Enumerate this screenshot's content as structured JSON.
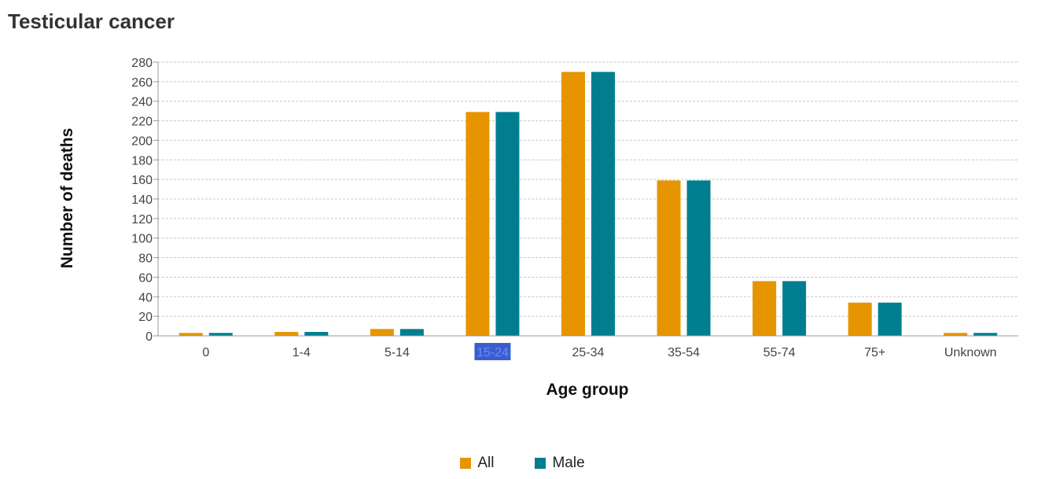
{
  "page_title": "Testicular cancer",
  "colors": {
    "All": "#e69500",
    "Male": "#007e8f",
    "grid": "#c8c8c8",
    "axis": "#999999",
    "highlight": "#3a5fcd"
  },
  "chart_data": {
    "type": "bar",
    "title": "Testicular cancer",
    "xlabel": "Age group",
    "ylabel": "Number of deaths",
    "categories": [
      "0",
      "1-4",
      "5-14",
      "15-24",
      "25-34",
      "35-54",
      "55-74",
      "75+",
      "Unknown"
    ],
    "highlighted_category": "15-24",
    "series": [
      {
        "name": "All",
        "values": [
          3,
          4,
          7,
          229,
          270,
          159,
          56,
          34,
          3
        ]
      },
      {
        "name": "Male",
        "values": [
          3,
          4,
          7,
          229,
          270,
          159,
          56,
          34,
          3
        ]
      }
    ],
    "ylim": [
      0,
      280
    ],
    "yticks": [
      0,
      20,
      40,
      60,
      80,
      100,
      120,
      140,
      160,
      180,
      200,
      220,
      240,
      260,
      280
    ],
    "grid": true,
    "legend_position": "bottom-center"
  }
}
